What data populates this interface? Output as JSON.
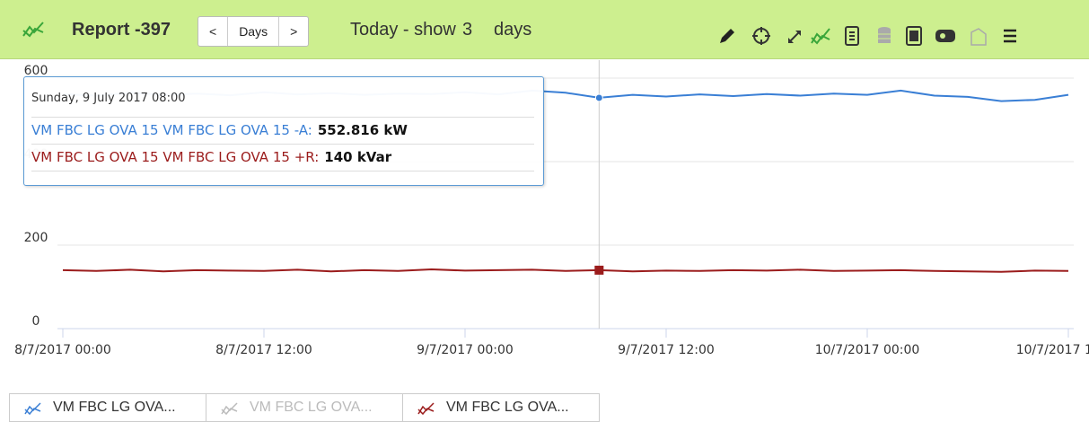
{
  "toolbar": {
    "title": "Report -397",
    "prev": "<",
    "period": "Days",
    "next": ">",
    "range_text": "Today - show",
    "range_count": "3",
    "range_unit": "days"
  },
  "chart_data": {
    "type": "line",
    "x": [
      "8/7/2017 00:00",
      "8/7/2017 02:00",
      "8/7/2017 04:00",
      "8/7/2017 06:00",
      "8/7/2017 08:00",
      "8/7/2017 10:00",
      "8/7/2017 12:00",
      "8/7/2017 14:00",
      "8/7/2017 16:00",
      "8/7/2017 18:00",
      "8/7/2017 20:00",
      "8/7/2017 22:00",
      "9/7/2017 00:00",
      "9/7/2017 02:00",
      "9/7/2017 04:00",
      "9/7/2017 06:00",
      "9/7/2017 08:00",
      "9/7/2017 10:00",
      "9/7/2017 12:00",
      "9/7/2017 14:00",
      "9/7/2017 16:00",
      "9/7/2017 18:00",
      "9/7/2017 20:00",
      "9/7/2017 22:00",
      "10/7/2017 00:00",
      "10/7/2017 02:00",
      "10/7/2017 04:00",
      "10/7/2017 06:00",
      "10/7/2017 08:00",
      "10/7/2017 10:00",
      "10/7/2017 12:00"
    ],
    "series": [
      {
        "name": "VM FBC LG OVA 15 VM FBC LG OVA 15 -A",
        "color": "#3a7fd5",
        "values": [
          562,
          558,
          565,
          560,
          563,
          559,
          566,
          561,
          564,
          560,
          563,
          562,
          566,
          561,
          570,
          565,
          552.816,
          560,
          556,
          561,
          557,
          562,
          558,
          563,
          560,
          570,
          558,
          555,
          545,
          548,
          560
        ]
      },
      {
        "name": "VM FBC LG OVA 15 VM FBC LG OVA 15 +R",
        "color": "#9b1c1c",
        "values": [
          140,
          138,
          141,
          137,
          140,
          139,
          138,
          141,
          137,
          140,
          138,
          142,
          139,
          140,
          141,
          138,
          140,
          137,
          139,
          138,
          140,
          139,
          141,
          138,
          139,
          140,
          138,
          137,
          136,
          139,
          138
        ]
      }
    ],
    "ylim": [
      0,
      600
    ],
    "yticks": [
      0,
      200,
      400,
      600
    ],
    "xticks": [
      "8/7/2017 00:00",
      "8/7/2017 12:00",
      "9/7/2017 00:00",
      "9/7/2017 12:00",
      "10/7/2017 00:00",
      "10/7/2017 12:00"
    ],
    "grid": true
  },
  "tooltip": {
    "date": "Sunday, 9 July 2017 08:00",
    "rows": [
      {
        "label": "VM FBC LG OVA 15 VM FBC LG OVA 15 -A:",
        "value": "552.816 kW"
      },
      {
        "label": "VM FBC LG OVA 15 VM FBC LG OVA 15 +R:",
        "value": "140 kVar"
      }
    ]
  },
  "legend": {
    "items": [
      "VM FBC LG OVA...",
      "VM FBC LG OVA...",
      "VM FBC LG OVA..."
    ]
  }
}
